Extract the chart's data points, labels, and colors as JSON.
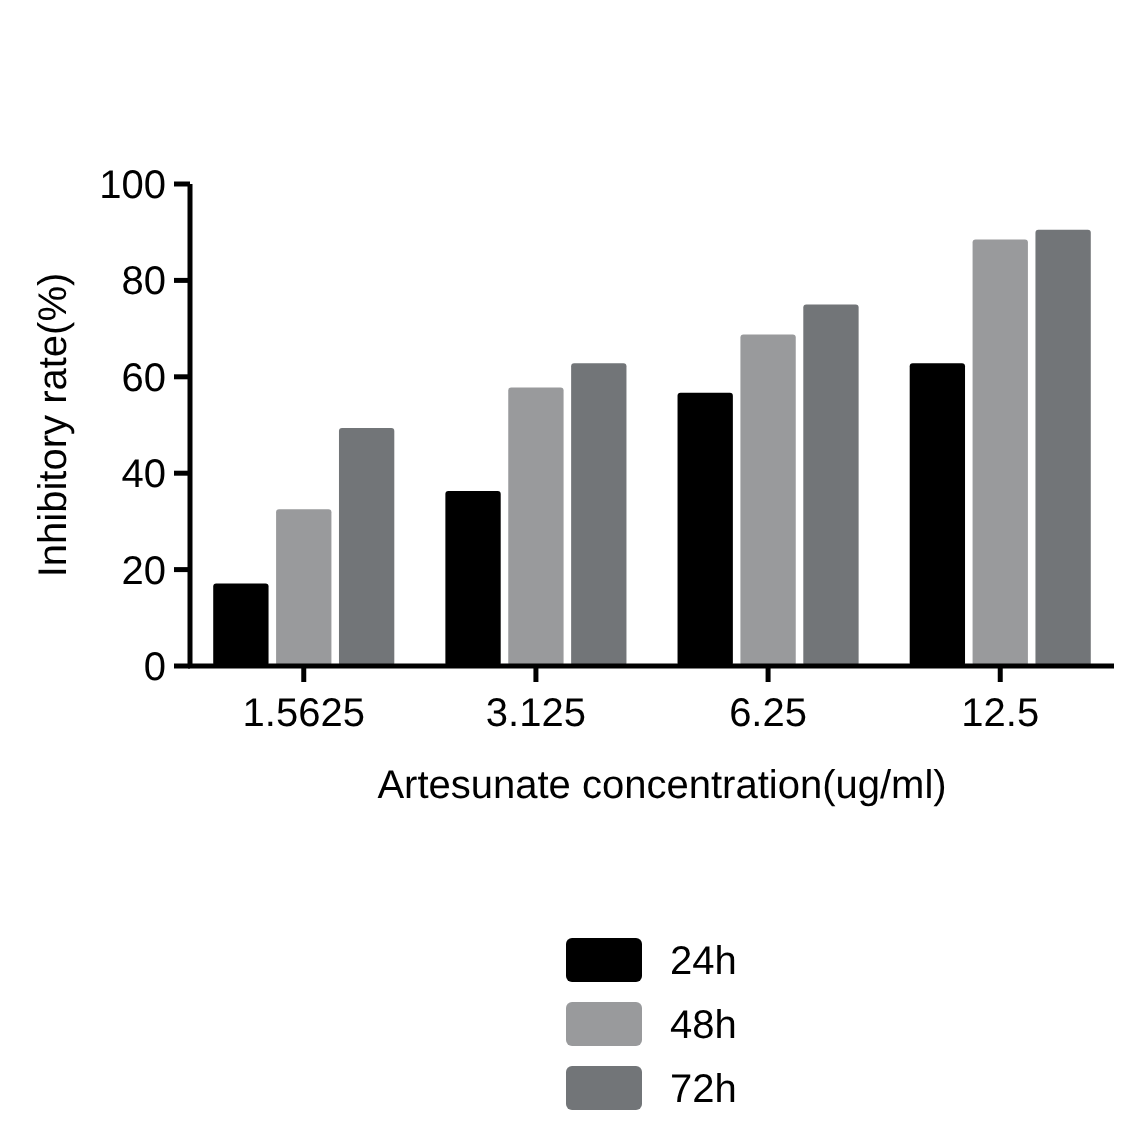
{
  "chart_data": {
    "type": "bar",
    "xlabel": "Artesunate concentration(ug/ml)",
    "ylabel": "Inhibitory rate(%)",
    "categories": [
      "1.5625",
      "3.125",
      "6.25",
      "12.5"
    ],
    "series": [
      {
        "name": "24h",
        "color": "#000000",
        "values": [
          17.1,
          36.3,
          56.7,
          62.8
        ]
      },
      {
        "name": "48h",
        "color": "#999a9c",
        "values": [
          32.5,
          57.8,
          68.8,
          88.5
        ]
      },
      {
        "name": "72h",
        "color": "#727578",
        "values": [
          49.4,
          62.8,
          75,
          90.5
        ]
      }
    ],
    "ylim": [
      0,
      100
    ],
    "yticks": [
      0,
      20,
      40,
      60,
      80,
      100
    ],
    "grid": false,
    "legend": "bottom"
  }
}
